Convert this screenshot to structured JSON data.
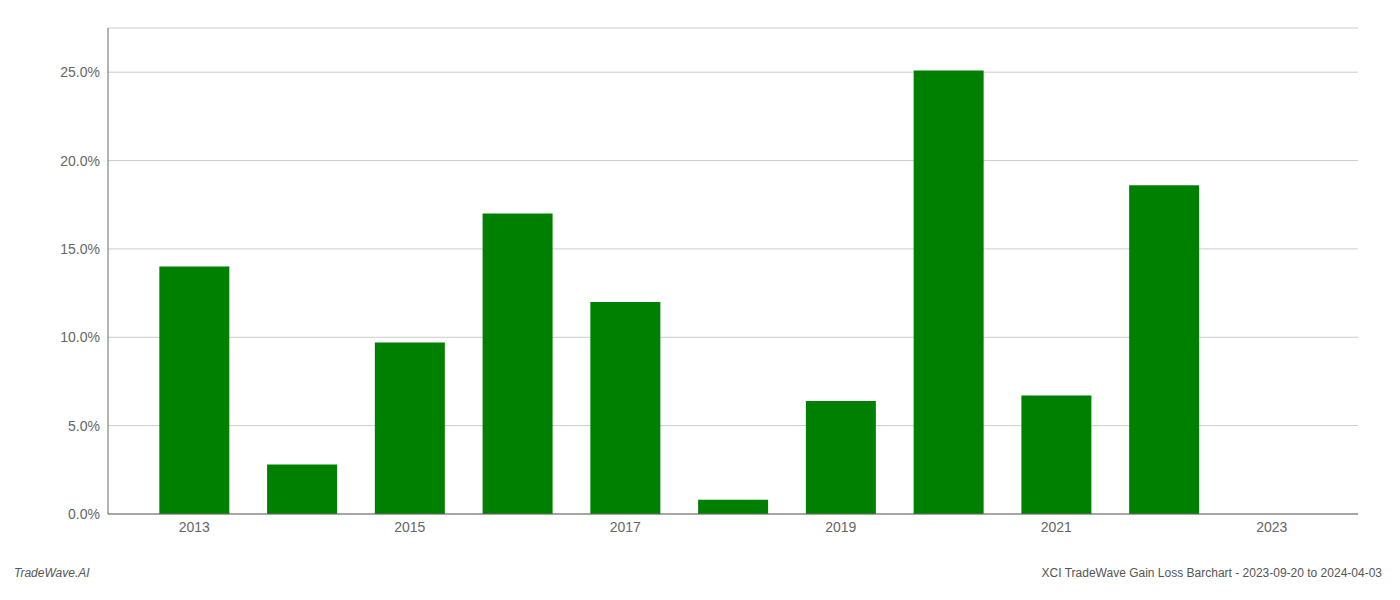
{
  "chart_data": {
    "type": "bar",
    "x": [
      2013,
      2014,
      2015,
      2016,
      2017,
      2018,
      2019,
      2020,
      2021,
      2022
    ],
    "values": [
      0.14,
      0.028,
      0.097,
      0.17,
      0.12,
      0.008,
      0.064,
      0.251,
      0.067,
      0.186
    ],
    "color": "#008000",
    "xlim": [
      2012.2,
      2023.8
    ],
    "xticks": [
      2013,
      2015,
      2017,
      2019,
      2021,
      2023
    ],
    "ylim": [
      0,
      0.275
    ],
    "yticks": [
      {
        "value": 0.0,
        "label": "0.0%"
      },
      {
        "value": 0.05,
        "label": "5.0%"
      },
      {
        "value": 0.1,
        "label": "10.0%"
      },
      {
        "value": 0.15,
        "label": "15.0%"
      },
      {
        "value": 0.2,
        "label": "20.0%"
      },
      {
        "value": 0.25,
        "label": "25.0%"
      }
    ],
    "grid": true,
    "annotations": [
      "TradeWave.AI",
      "XCI TradeWave Gain Loss Barchart - 2023-09-20 to 2024-04-03"
    ]
  }
}
